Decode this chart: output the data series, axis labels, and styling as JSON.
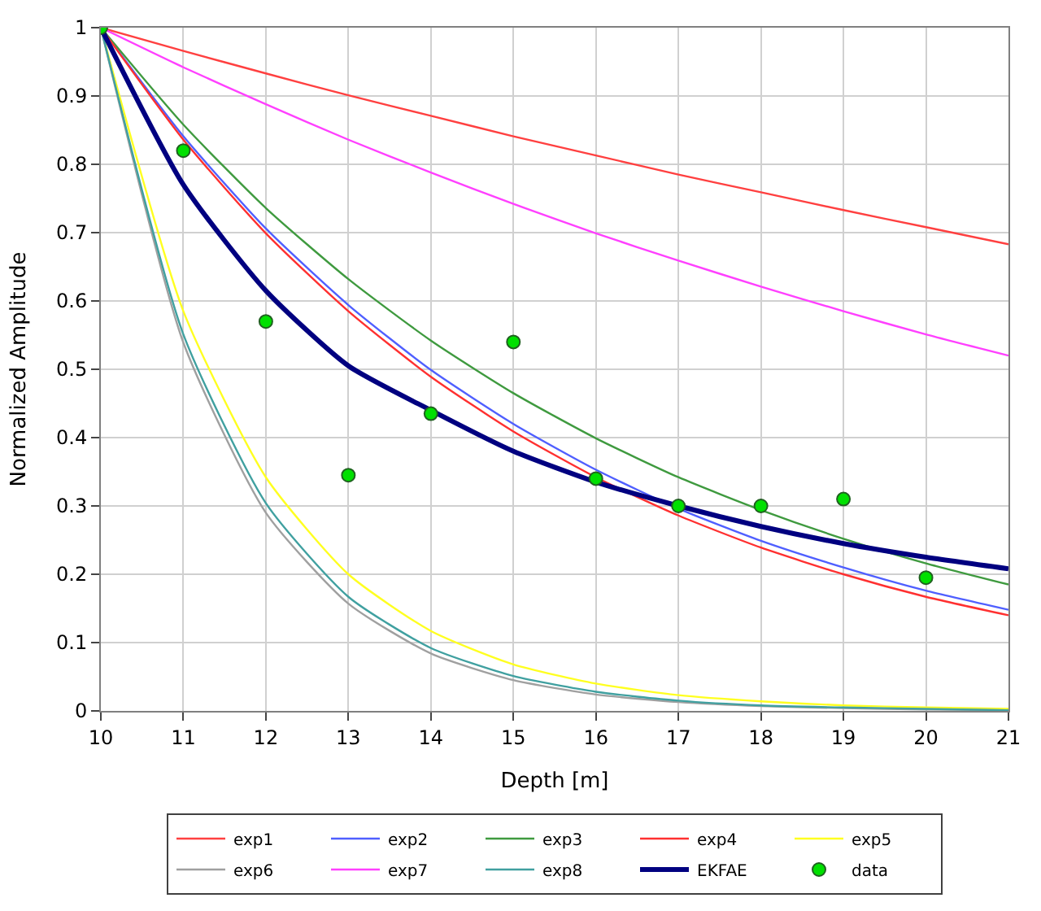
{
  "chart_data": {
    "type": "line",
    "xlabel": "Depth [m]",
    "ylabel": "Normalized Amplitude",
    "x": [
      10,
      11,
      12,
      13,
      14,
      15,
      16,
      17,
      18,
      19,
      20,
      21
    ],
    "series": [
      {
        "name": "exp1",
        "color": "#ff4040",
        "values": [
          1,
          0.966,
          0.933,
          0.901,
          0.871,
          0.841,
          0.813,
          0.785,
          0.759,
          0.733,
          0.708,
          0.683
        ]
      },
      {
        "name": "exp2",
        "color": "#4f5fff",
        "values": [
          1,
          0.841,
          0.706,
          0.594,
          0.499,
          0.42,
          0.353,
          0.296,
          0.249,
          0.21,
          0.176,
          0.148
        ]
      },
      {
        "name": "exp3",
        "color": "#3f9a3f",
        "values": [
          1,
          0.858,
          0.736,
          0.632,
          0.542,
          0.465,
          0.399,
          0.342,
          0.294,
          0.252,
          0.216,
          0.185
        ]
      },
      {
        "name": "exp4",
        "color": "#ff3030",
        "values": [
          1,
          0.836,
          0.699,
          0.585,
          0.489,
          0.409,
          0.342,
          0.286,
          0.239,
          0.2,
          0.167,
          0.14
        ]
      },
      {
        "name": "exp5",
        "color": "#ffff20",
        "values": [
          1,
          0.585,
          0.342,
          0.2,
          0.117,
          0.068,
          0.04,
          0.023,
          0.014,
          0.008,
          0.005,
          0.003
        ]
      },
      {
        "name": "exp6",
        "color": "#a0a0a0",
        "values": [
          1,
          0.539,
          0.29,
          0.157,
          0.084,
          0.045,
          0.024,
          0.013,
          0.007,
          0.004,
          0.002,
          0.001
        ]
      },
      {
        "name": "exp7",
        "color": "#ff40ff",
        "values": [
          1,
          0.942,
          0.888,
          0.836,
          0.788,
          0.742,
          0.699,
          0.659,
          0.621,
          0.585,
          0.551,
          0.52
        ]
      },
      {
        "name": "exp8",
        "color": "#40a0a0",
        "values": [
          1,
          0.551,
          0.304,
          0.167,
          0.092,
          0.051,
          0.028,
          0.015,
          0.008,
          0.005,
          0.003,
          0.001
        ]
      },
      {
        "name": "EKFAE",
        "color": "#000080",
        "values": [
          1,
          0.77,
          0.615,
          0.505,
          0.44,
          0.38,
          0.335,
          0.3,
          0.27,
          0.245,
          0.225,
          0.208
        ]
      },
      {
        "name": "data",
        "type": "scatter",
        "marker": "circle",
        "color": "#00e000",
        "x": [
          10,
          11,
          12,
          13,
          14,
          15,
          16,
          17,
          18,
          19,
          20
        ],
        "values": [
          1,
          0.82,
          0.57,
          0.345,
          0.435,
          0.54,
          0.34,
          0.3,
          0.3,
          0.31,
          0.195
        ]
      }
    ],
    "xlim": [
      10,
      21
    ],
    "xticks": [
      10,
      11,
      12,
      13,
      14,
      15,
      16,
      17,
      18,
      19,
      20,
      21
    ],
    "ylim": [
      0,
      1
    ],
    "yticks": [
      0,
      0.1,
      0.2,
      0.3,
      0.4,
      0.5,
      0.6,
      0.7,
      0.8,
      0.9,
      1
    ],
    "grid": true,
    "legend": "bottom"
  }
}
